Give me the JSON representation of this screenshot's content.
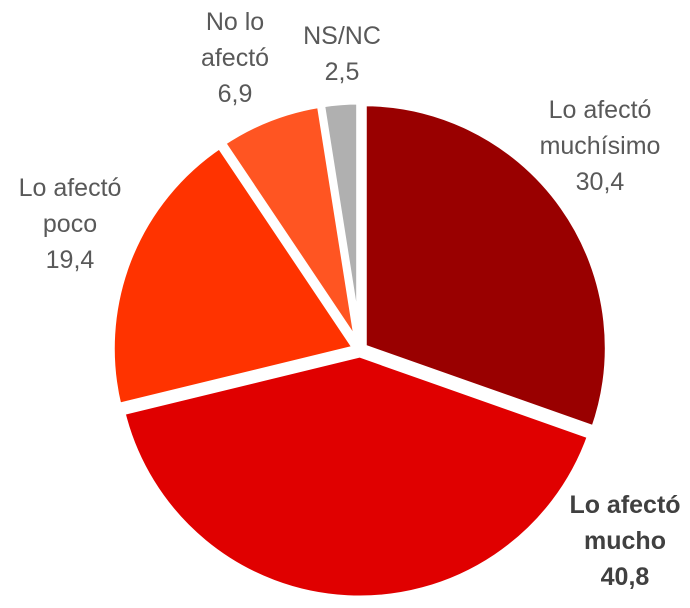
{
  "chart_data": {
    "type": "pie",
    "categories": [
      "Lo afectó muchísimo",
      "Lo afectó mucho",
      "Lo afectó poco",
      "No lo afectó",
      "NS/NC"
    ],
    "values": [
      30.4,
      40.8,
      19.4,
      6.9,
      2.5
    ],
    "value_labels": [
      "30,4",
      "40,8",
      "19,4",
      "6,9",
      "2,5"
    ],
    "colors": [
      "#990000",
      "#e00000",
      "#ff3300",
      "#ff5522",
      "#b0b0b0"
    ]
  }
}
